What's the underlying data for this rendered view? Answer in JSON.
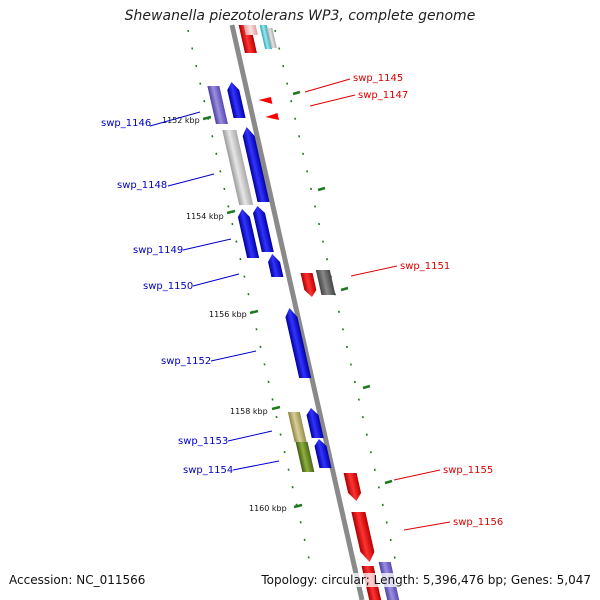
{
  "title": "Shewanella piezotolerans WP3, complete genome",
  "footer": {
    "accession": "Accession: NC_011566",
    "topology": "Topology: circular; Length: 5,396,476 bp; Genes: 5,047"
  },
  "colors": {
    "backbone": "#8a8a8a",
    "tick_major": "#1f7a1f",
    "tick_minor": "#1f7a1f",
    "forward_label": "#0000cc",
    "reverse_label": "#dd0000"
  },
  "ticks": [
    "1152 kbp",
    "1154 kbp",
    "1156 kbp",
    "1158 kbp",
    "1160 kbp"
  ],
  "genes": [
    {
      "name": "swp_1145",
      "strand": "reverse",
      "color": "#ff0000"
    },
    {
      "name": "swp_1146",
      "strand": "forward",
      "color": "#7a6acb"
    },
    {
      "name": "swp_1147",
      "strand": "reverse",
      "color": "#ff0000"
    },
    {
      "name": "swp_1148",
      "strand": "forward",
      "color": "#bdbdbd"
    },
    {
      "name": "swp_1149",
      "strand": "forward",
      "color": "#0000ee"
    },
    {
      "name": "swp_1150",
      "strand": "forward",
      "color": "#0000ee"
    },
    {
      "name": "swp_1151",
      "strand": "reverse",
      "color": "#ff0000"
    },
    {
      "name": "swp_1152",
      "strand": "forward",
      "color": "#0000ee"
    },
    {
      "name": "swp_1153",
      "strand": "forward",
      "color": "#b8b070"
    },
    {
      "name": "swp_1154",
      "strand": "forward",
      "color": "#6b8e23"
    },
    {
      "name": "swp_1155",
      "strand": "reverse",
      "color": "#ff0000"
    },
    {
      "name": "swp_1156",
      "strand": "reverse",
      "color": "#ff0000"
    }
  ]
}
